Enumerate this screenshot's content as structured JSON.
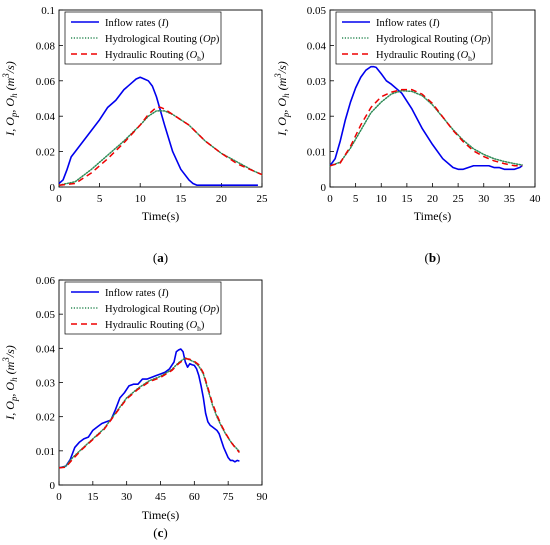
{
  "chart_data": [
    {
      "type": "line",
      "panel": "(a)",
      "panel_label": {
        "open": "(",
        "letter": "a",
        "close": ")"
      },
      "xlabel": "Time(s)",
      "ylabel_text": "I, O_p, O_h (m^3/s)",
      "xlim": [
        0,
        25
      ],
      "ylim": [
        0,
        0.1
      ],
      "xticks": [
        0,
        5,
        10,
        15,
        20,
        25
      ],
      "xtick_labels": [
        "0",
        "5",
        "10",
        "15",
        "20",
        "25"
      ],
      "yticks": [
        0,
        0.02,
        0.04,
        0.06,
        0.08,
        0.1
      ],
      "ytick_labels": [
        "0",
        "0.02",
        "0.04",
        "0.06",
        "0.08",
        "0.1"
      ],
      "legend_position": "top-left",
      "series": [
        {
          "name": "Inflow rates (I)",
          "legend_main": "Inflow rates (",
          "legend_sym": "I",
          "legend_sub": "",
          "legend_close": ")",
          "color": "#0000ee",
          "style": "solid",
          "x": [
            0,
            0.5,
            1,
            1.5,
            2,
            3,
            4,
            5,
            6,
            7,
            8,
            9,
            9.5,
            10,
            10.5,
            11,
            11.5,
            12,
            13,
            14,
            15,
            16,
            16.5,
            17,
            18,
            20,
            22,
            24.5
          ],
          "y": [
            0.002,
            0.004,
            0.01,
            0.017,
            0.02,
            0.026,
            0.032,
            0.038,
            0.045,
            0.049,
            0.055,
            0.059,
            0.061,
            0.062,
            0.061,
            0.06,
            0.057,
            0.051,
            0.035,
            0.02,
            0.01,
            0.004,
            0.002,
            0.001,
            0.001,
            0.001,
            0.001,
            0.001
          ]
        },
        {
          "name": "Hydrological Routing (Op)",
          "legend_main": "Hydrological Routing (",
          "legend_sym": "Op",
          "legend_sub": "",
          "legend_close": ")",
          "color": "#2e8b57",
          "style": "dotted",
          "x": [
            0,
            2,
            4,
            6,
            8,
            10,
            11,
            12,
            13,
            14,
            16,
            18,
            20,
            22,
            24,
            25
          ],
          "y": [
            0.001,
            0.003,
            0.01,
            0.018,
            0.026,
            0.035,
            0.04,
            0.043,
            0.043,
            0.041,
            0.035,
            0.026,
            0.019,
            0.014,
            0.009,
            0.007
          ]
        },
        {
          "name": "Hydraulic Routing (Oh)",
          "legend_main": "Hydraulic Routing (",
          "legend_sym": "O",
          "legend_sub": "h",
          "legend_close": ")",
          "color": "#ee0000",
          "style": "dashed",
          "x": [
            0,
            2,
            4,
            6,
            8,
            10,
            11,
            12,
            12.5,
            13,
            14,
            16,
            18,
            20,
            22,
            24,
            25
          ],
          "y": [
            0.001,
            0.002,
            0.008,
            0.016,
            0.025,
            0.035,
            0.041,
            0.045,
            0.045,
            0.044,
            0.041,
            0.035,
            0.026,
            0.019,
            0.013,
            0.009,
            0.007
          ]
        }
      ]
    },
    {
      "type": "line",
      "panel": "(b)",
      "panel_label": {
        "open": "(",
        "letter": "b",
        "close": ")"
      },
      "xlabel": "Time(s)",
      "ylabel_text": "I, O_p, O_h (m^3/s)",
      "xlim": [
        0,
        40
      ],
      "ylim": [
        0,
        0.05
      ],
      "xticks": [
        0,
        5,
        10,
        15,
        20,
        25,
        30,
        35,
        40
      ],
      "xtick_labels": [
        "0",
        "5",
        "10",
        "15",
        "20",
        "25",
        "30",
        "35",
        "40"
      ],
      "yticks": [
        0,
        0.01,
        0.02,
        0.03,
        0.04,
        0.05
      ],
      "ytick_labels": [
        "0",
        "0.01",
        "0.02",
        "0.03",
        "0.04",
        "0.05"
      ],
      "legend_position": "top-left",
      "series": [
        {
          "name": "Inflow rates (I)",
          "legend_main": "Inflow rates (",
          "legend_sym": "I",
          "legend_sub": "",
          "legend_close": ")",
          "color": "#0000ee",
          "style": "solid",
          "x": [
            0,
            1,
            2,
            3,
            4,
            5,
            6,
            7,
            8,
            8.5,
            9,
            10,
            11,
            12,
            14,
            16,
            18,
            20,
            22,
            24,
            25,
            26,
            27,
            28,
            29,
            30,
            31,
            32,
            33,
            34,
            35,
            36,
            37,
            37.5
          ],
          "y": [
            0.006,
            0.008,
            0.013,
            0.019,
            0.024,
            0.028,
            0.031,
            0.033,
            0.034,
            0.034,
            0.0338,
            0.032,
            0.03,
            0.029,
            0.0265,
            0.022,
            0.0165,
            0.012,
            0.008,
            0.0055,
            0.005,
            0.005,
            0.0055,
            0.006,
            0.006,
            0.006,
            0.006,
            0.0055,
            0.0055,
            0.005,
            0.005,
            0.005,
            0.0055,
            0.006
          ]
        },
        {
          "name": "Hydrological Routing (Op)",
          "legend_main": "Hydrological Routing (",
          "legend_sym": "Op",
          "legend_sub": "",
          "legend_close": ")",
          "color": "#2e8b57",
          "style": "dotted",
          "x": [
            0,
            2,
            4,
            6,
            8,
            10,
            12,
            14,
            16,
            18,
            20,
            22,
            24,
            26,
            28,
            30,
            32,
            34,
            36,
            37.5
          ],
          "y": [
            0.006,
            0.007,
            0.011,
            0.016,
            0.021,
            0.024,
            0.0263,
            0.0272,
            0.027,
            0.0258,
            0.0232,
            0.0197,
            0.0162,
            0.0132,
            0.0108,
            0.0092,
            0.008,
            0.0072,
            0.0066,
            0.0062
          ]
        },
        {
          "name": "Hydraulic Routing (Oh)",
          "legend_main": "Hydraulic Routing (",
          "legend_sym": "O",
          "legend_sub": "h",
          "legend_close": ")",
          "color": "#ee0000",
          "style": "dashed",
          "x": [
            0,
            2,
            4,
            6,
            8,
            10,
            12,
            14,
            16,
            18,
            20,
            22,
            24,
            26,
            28,
            30,
            32,
            34,
            36,
            37.5
          ],
          "y": [
            0.006,
            0.0068,
            0.0115,
            0.0175,
            0.0225,
            0.0255,
            0.0268,
            0.0275,
            0.0275,
            0.0262,
            0.0236,
            0.0198,
            0.016,
            0.0128,
            0.0102,
            0.0086,
            0.0074,
            0.0066,
            0.006,
            0.006
          ]
        }
      ]
    },
    {
      "type": "line",
      "panel": "(c)",
      "panel_label": {
        "open": "(",
        "letter": "c",
        "close": ")"
      },
      "xlabel": "Time(s)",
      "ylabel_text": "I, O_p, O_h (m^3/s)",
      "xlim": [
        0,
        90
      ],
      "ylim": [
        0,
        0.06
      ],
      "xticks": [
        0,
        15,
        30,
        45,
        60,
        75,
        90
      ],
      "xtick_labels": [
        "0",
        "15",
        "30",
        "45",
        "60",
        "75",
        "90"
      ],
      "yticks": [
        0,
        0.01,
        0.02,
        0.03,
        0.04,
        0.05,
        0.06
      ],
      "ytick_labels": [
        "0",
        "0.01",
        "0.02",
        "0.03",
        "0.04",
        "0.05",
        "0.06"
      ],
      "legend_position": "top-left",
      "series": [
        {
          "name": "Inflow rates (I)",
          "legend_main": "Inflow rates (",
          "legend_sym": "I",
          "legend_sub": "",
          "legend_close": ")",
          "color": "#0000ee",
          "style": "solid",
          "x": [
            0,
            3,
            5,
            7,
            9,
            11,
            13,
            15,
            17,
            19,
            21,
            23,
            25,
            27,
            29,
            31,
            33,
            35,
            37,
            39,
            41,
            43,
            45,
            47,
            49,
            51,
            52,
            53,
            54,
            55,
            56,
            57,
            58,
            59,
            60,
            61,
            62,
            63,
            64,
            65,
            66,
            67,
            68,
            69,
            70,
            71,
            72,
            73,
            74,
            75,
            76,
            77,
            78,
            79,
            80
          ],
          "y": [
            0.005,
            0.0055,
            0.0075,
            0.011,
            0.0125,
            0.0135,
            0.014,
            0.016,
            0.017,
            0.018,
            0.0185,
            0.019,
            0.022,
            0.0255,
            0.027,
            0.029,
            0.0295,
            0.0295,
            0.031,
            0.031,
            0.0315,
            0.032,
            0.0325,
            0.033,
            0.034,
            0.036,
            0.039,
            0.0395,
            0.0398,
            0.039,
            0.036,
            0.0345,
            0.0355,
            0.0352,
            0.035,
            0.034,
            0.032,
            0.029,
            0.0255,
            0.021,
            0.0185,
            0.0175,
            0.017,
            0.0165,
            0.016,
            0.015,
            0.013,
            0.011,
            0.0095,
            0.008,
            0.0072,
            0.0072,
            0.0068,
            0.0072,
            0.007
          ]
        },
        {
          "name": "Hydrological Routing (Op)",
          "legend_main": "Hydrological Routing (",
          "legend_sym": "Op",
          "legend_sub": "",
          "legend_close": ")",
          "color": "#2e8b57",
          "style": "dotted",
          "x": [
            0,
            3,
            6,
            10,
            15,
            20,
            25,
            30,
            35,
            40,
            45,
            50,
            53,
            56,
            58,
            60,
            62,
            64,
            66,
            68,
            70,
            72,
            74,
            76,
            78,
            80
          ],
          "y": [
            0.005,
            0.0055,
            0.008,
            0.0105,
            0.0135,
            0.0165,
            0.021,
            0.0255,
            0.0283,
            0.0305,
            0.0318,
            0.0338,
            0.0358,
            0.0372,
            0.0366,
            0.036,
            0.0348,
            0.0325,
            0.028,
            0.0235,
            0.02,
            0.0172,
            0.0148,
            0.0128,
            0.0112,
            0.0098
          ]
        },
        {
          "name": "Hydraulic Routing (Oh)",
          "legend_main": "Hydraulic Routing (",
          "legend_sym": "O",
          "legend_sub": "h",
          "legend_close": ")",
          "color": "#ee0000",
          "style": "dashed",
          "x": [
            0,
            3,
            6,
            10,
            15,
            20,
            25,
            30,
            35,
            40,
            45,
            50,
            53,
            56,
            58,
            60,
            62,
            64,
            66,
            68,
            70,
            72,
            74,
            76,
            78,
            80
          ],
          "y": [
            0.005,
            0.0052,
            0.0075,
            0.0103,
            0.0133,
            0.0163,
            0.0208,
            0.0252,
            0.028,
            0.0302,
            0.0315,
            0.0335,
            0.0355,
            0.037,
            0.0368,
            0.0362,
            0.0352,
            0.0328,
            0.0285,
            0.024,
            0.0205,
            0.0175,
            0.015,
            0.0128,
            0.011,
            0.0095
          ]
        }
      ]
    }
  ]
}
